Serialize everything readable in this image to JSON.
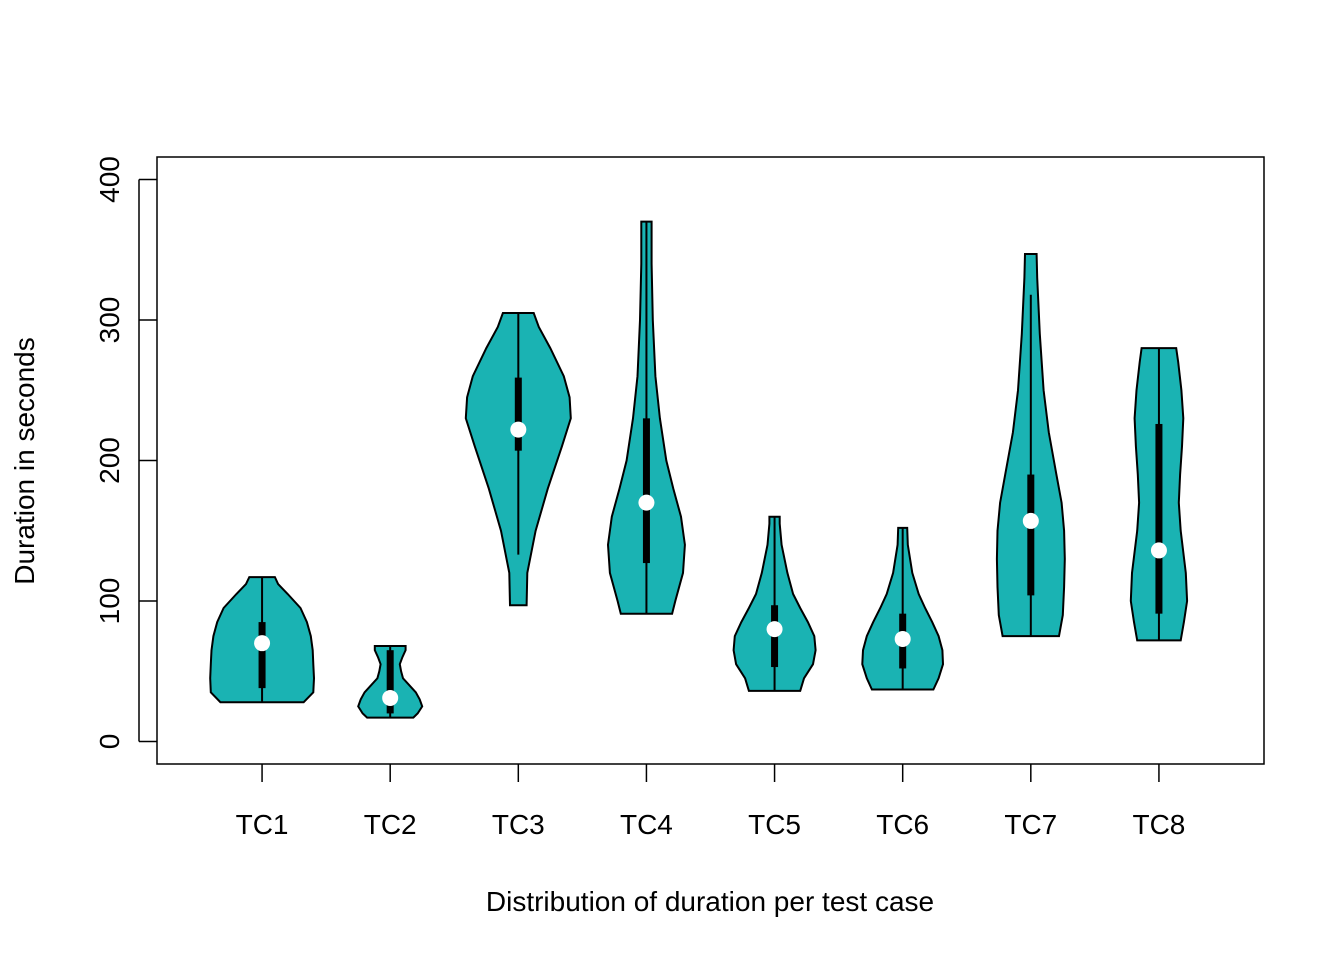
{
  "chart_data": {
    "type": "violin",
    "xlabel": "Distribution of duration per test case",
    "ylabel": "Duration in seconds",
    "ylim": [
      -16,
      416
    ],
    "yticks": [
      0,
      100,
      200,
      300,
      400
    ],
    "grid": false,
    "fill_color": "#1AB3B3",
    "median_color": "#FFFFFF",
    "categories": [
      "TC1",
      "TC2",
      "TC3",
      "TC4",
      "TC5",
      "TC6",
      "TC7",
      "TC8"
    ],
    "series": [
      {
        "category": "TC1",
        "min": 28,
        "q1": 38,
        "median": 70,
        "q3": 85,
        "max": 117,
        "whisker_low": 28,
        "whisker_high": 117,
        "density": [
          [
            28,
            0.65
          ],
          [
            35,
            0.8
          ],
          [
            45,
            0.81
          ],
          [
            55,
            0.8
          ],
          [
            65,
            0.79
          ],
          [
            75,
            0.76
          ],
          [
            85,
            0.7
          ],
          [
            95,
            0.6
          ],
          [
            105,
            0.4
          ],
          [
            112,
            0.25
          ],
          [
            117,
            0.2
          ]
        ]
      },
      {
        "category": "TC2",
        "min": 17,
        "q1": 20,
        "median": 31,
        "q3": 65,
        "max": 68,
        "whisker_low": 17,
        "whisker_high": 68,
        "density": [
          [
            17,
            0.36
          ],
          [
            20,
            0.43
          ],
          [
            25,
            0.5
          ],
          [
            30,
            0.46
          ],
          [
            35,
            0.4
          ],
          [
            40,
            0.3
          ],
          [
            45,
            0.2
          ],
          [
            50,
            0.17
          ],
          [
            55,
            0.15
          ],
          [
            60,
            0.19
          ],
          [
            65,
            0.24
          ],
          [
            68,
            0.24
          ]
        ]
      },
      {
        "category": "TC3",
        "min": 97,
        "q1": 207,
        "median": 222,
        "q3": 259,
        "max": 305,
        "whisker_low": 133,
        "whisker_high": 305,
        "density": [
          [
            97,
            0.13
          ],
          [
            120,
            0.14
          ],
          [
            150,
            0.27
          ],
          [
            180,
            0.46
          ],
          [
            210,
            0.68
          ],
          [
            230,
            0.82
          ],
          [
            245,
            0.8
          ],
          [
            260,
            0.71
          ],
          [
            280,
            0.5
          ],
          [
            295,
            0.32
          ],
          [
            305,
            0.24
          ]
        ]
      },
      {
        "category": "TC4",
        "min": 91,
        "q1": 127,
        "median": 170,
        "q3": 230,
        "max": 370,
        "whisker_low": 91,
        "whisker_high": 370,
        "density": [
          [
            91,
            0.4
          ],
          [
            100,
            0.45
          ],
          [
            120,
            0.57
          ],
          [
            140,
            0.6
          ],
          [
            160,
            0.54
          ],
          [
            180,
            0.42
          ],
          [
            200,
            0.31
          ],
          [
            230,
            0.21
          ],
          [
            260,
            0.14
          ],
          [
            300,
            0.1
          ],
          [
            340,
            0.08
          ],
          [
            370,
            0.08
          ]
        ]
      },
      {
        "category": "TC5",
        "min": 36,
        "q1": 53,
        "median": 80,
        "q3": 97,
        "max": 160,
        "whisker_low": 36,
        "whisker_high": 160,
        "density": [
          [
            36,
            0.4
          ],
          [
            45,
            0.46
          ],
          [
            55,
            0.6
          ],
          [
            65,
            0.64
          ],
          [
            75,
            0.62
          ],
          [
            85,
            0.52
          ],
          [
            95,
            0.4
          ],
          [
            105,
            0.29
          ],
          [
            120,
            0.2
          ],
          [
            140,
            0.11
          ],
          [
            155,
            0.08
          ],
          [
            160,
            0.08
          ]
        ]
      },
      {
        "category": "TC6",
        "min": 37,
        "q1": 52,
        "median": 73,
        "q3": 91,
        "max": 152,
        "whisker_low": 37,
        "whisker_high": 152,
        "density": [
          [
            37,
            0.48
          ],
          [
            45,
            0.56
          ],
          [
            55,
            0.63
          ],
          [
            65,
            0.62
          ],
          [
            75,
            0.56
          ],
          [
            85,
            0.46
          ],
          [
            95,
            0.35
          ],
          [
            105,
            0.25
          ],
          [
            120,
            0.15
          ],
          [
            140,
            0.08
          ],
          [
            152,
            0.07
          ]
        ]
      },
      {
        "category": "TC7",
        "min": 75,
        "q1": 104,
        "median": 157,
        "q3": 190,
        "max": 347,
        "whisker_low": 75,
        "whisker_high": 318,
        "density": [
          [
            75,
            0.44
          ],
          [
            90,
            0.5
          ],
          [
            110,
            0.52
          ],
          [
            130,
            0.53
          ],
          [
            150,
            0.52
          ],
          [
            170,
            0.48
          ],
          [
            190,
            0.4
          ],
          [
            220,
            0.28
          ],
          [
            250,
            0.2
          ],
          [
            290,
            0.14
          ],
          [
            330,
            0.1
          ],
          [
            347,
            0.09
          ]
        ]
      },
      {
        "category": "TC8",
        "min": 72,
        "q1": 91,
        "median": 136,
        "q3": 226,
        "max": 280,
        "whisker_low": 72,
        "whisker_high": 280,
        "density": [
          [
            72,
            0.34
          ],
          [
            85,
            0.39
          ],
          [
            100,
            0.44
          ],
          [
            120,
            0.42
          ],
          [
            150,
            0.34
          ],
          [
            170,
            0.31
          ],
          [
            190,
            0.33
          ],
          [
            210,
            0.36
          ],
          [
            230,
            0.38
          ],
          [
            250,
            0.35
          ],
          [
            270,
            0.3
          ],
          [
            280,
            0.27
          ]
        ]
      }
    ]
  }
}
